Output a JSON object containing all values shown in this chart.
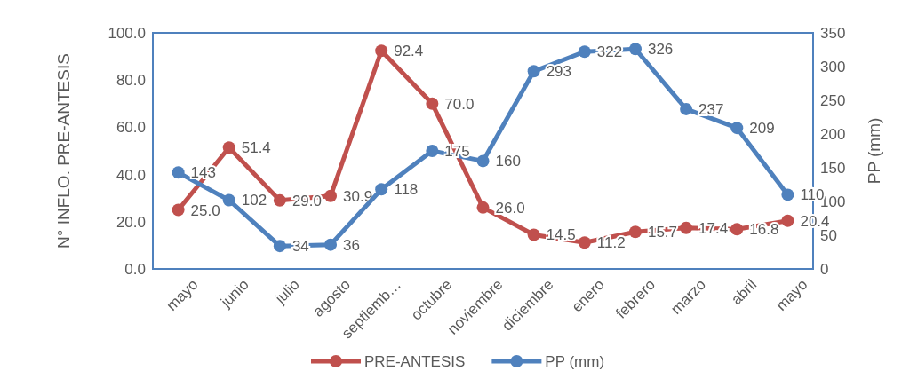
{
  "chart_data": {
    "type": "line",
    "ylabel": "N° INFLO. PRE-ANTESIS",
    "y2label": "PP (mm)",
    "categories": [
      "mayo",
      "junio",
      "julio",
      "agosto",
      "septiemb…",
      "octubre",
      "noviembre",
      "diciembre",
      "enero",
      "febrero",
      "marzo",
      "abril",
      "mayo"
    ],
    "series": [
      {
        "name": "PRE-ANTESIS",
        "color": "#c0504d",
        "values": [
          25.0,
          51.4,
          29.0,
          30.9,
          92.4,
          70.0,
          26.0,
          14.5,
          11.2,
          15.7,
          17.4,
          16.8,
          20.4
        ],
        "value_labels": [
          "25.0",
          "51.4",
          "29.0",
          "30.9",
          "92.4",
          "70.0",
          "26.0",
          "14.5",
          "11.2",
          "15.7",
          "17.4",
          "16.8",
          "20.4"
        ]
      },
      {
        "name": "PP (mm)",
        "color": "#4f81bd",
        "axis": "y2",
        "values": [
          143,
          102,
          34,
          36,
          118,
          175,
          160,
          293,
          322,
          326,
          237,
          209,
          110
        ],
        "value_labels": [
          "143",
          "102",
          "34",
          "36",
          "118",
          "175",
          "160",
          "293",
          "322",
          "326",
          "237",
          "209",
          "110"
        ]
      }
    ],
    "ylim": [
      0,
      100
    ],
    "yticks": [
      {
        "value": 0,
        "label": "0.0"
      },
      {
        "value": 20,
        "label": "20.0"
      },
      {
        "value": 40,
        "label": "40.0"
      },
      {
        "value": 60,
        "label": "60.0"
      },
      {
        "value": 80,
        "label": "80.0"
      },
      {
        "value": 100,
        "label": "100.0"
      }
    ],
    "y2lim": [
      0,
      350
    ],
    "y2ticks": [
      0,
      50,
      100,
      150,
      200,
      250,
      300,
      350
    ],
    "marker": "circle",
    "line_style": "solid",
    "legend": "bottom",
    "grid": false
  }
}
